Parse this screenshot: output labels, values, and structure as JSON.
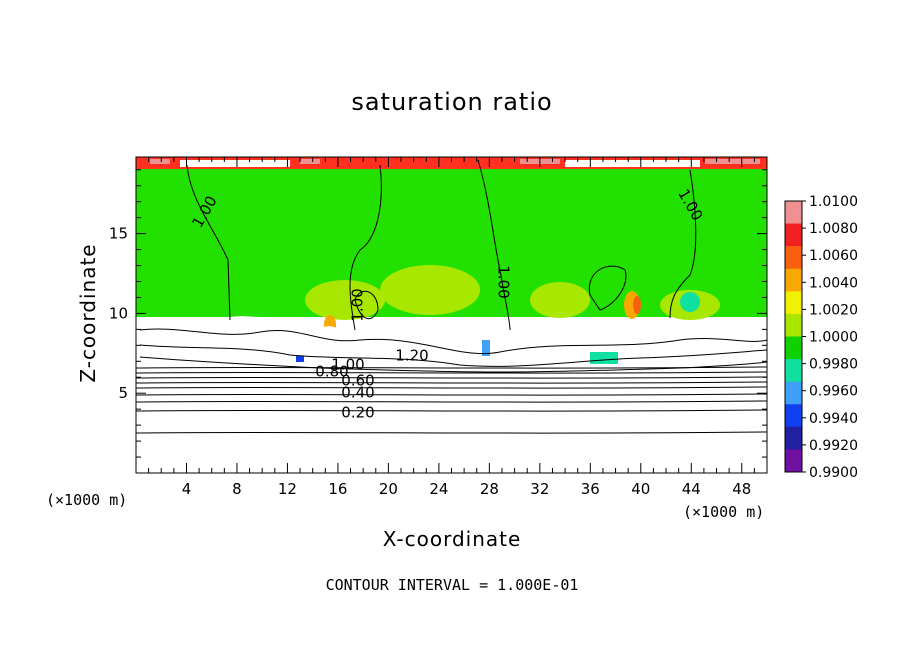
{
  "chart_data": {
    "type": "heatmap",
    "title": "saturation ratio",
    "xlabel": "X-coordinate",
    "ylabel": "Z-coordinate",
    "x_unit": "(×1000 m)",
    "footer": "CONTOUR INTERVAL = 1.000E-01",
    "xlim": [
      0,
      50
    ],
    "ylim": [
      0,
      19.8
    ],
    "x_ticks": [
      4,
      8,
      12,
      16,
      20,
      24,
      28,
      32,
      36,
      40,
      44,
      48
    ],
    "y_ticks": [
      5,
      10,
      15
    ],
    "colorbar": {
      "labels": [
        "1.0100",
        "1.0080",
        "1.0060",
        "1.0040",
        "1.0020",
        "1.0000",
        "0.9980",
        "0.9960",
        "0.9940",
        "0.9920",
        "0.9900"
      ],
      "colors": [
        "#f09090",
        "#f02020",
        "#f86010",
        "#f8a800",
        "#f0f000",
        "#a8e800",
        "#10d000",
        "#10e0a0",
        "#40a0f8",
        "#1040f0",
        "#2020a0",
        "#7010a0"
      ]
    },
    "contour_labels": [
      "1.00",
      "1.00",
      "1.00",
      "1.00",
      "1.20",
      "1.00",
      "0.80",
      "0.60",
      "0.40",
      "0.20"
    ],
    "colors": {
      "field_main": "#22e000",
      "upper_band": "#ff3020",
      "contour": "#000000"
    }
  }
}
